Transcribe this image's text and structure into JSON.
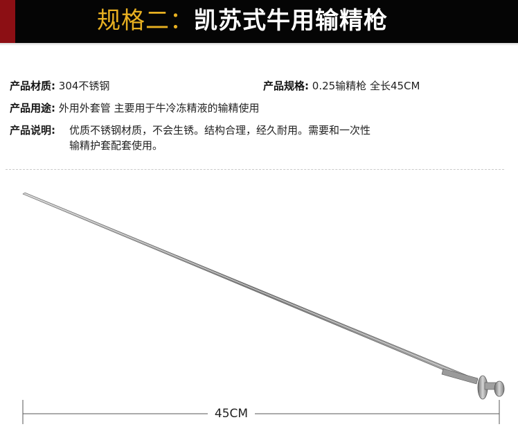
{
  "banner": {
    "prefix": "规格二：",
    "title": "凯苏式牛用输精枪"
  },
  "specs": {
    "material_label": "产品材质:",
    "material_value": "304不锈钢",
    "spec_label": "产品规格:",
    "spec_value": "0.25输精枪 全长45CM",
    "usage_label": "产品用途:",
    "usage_value": "外用外套管 主要用于牛冷冻精液的输精使用",
    "desc_label": "产品说明:",
    "desc_line1": "优质不锈钢材质，不会生锈。结构合理，经久耐用。需要和一次性",
    "desc_line2": "输精护套配套使用。"
  },
  "dimension": {
    "length_label": "45CM"
  },
  "colors": {
    "banner_bg": "#050505",
    "banner_accent": "#8c0f14",
    "title_prefix": "#e8b021",
    "title_main": "#ffffff",
    "steel": "#8f8f8f"
  }
}
